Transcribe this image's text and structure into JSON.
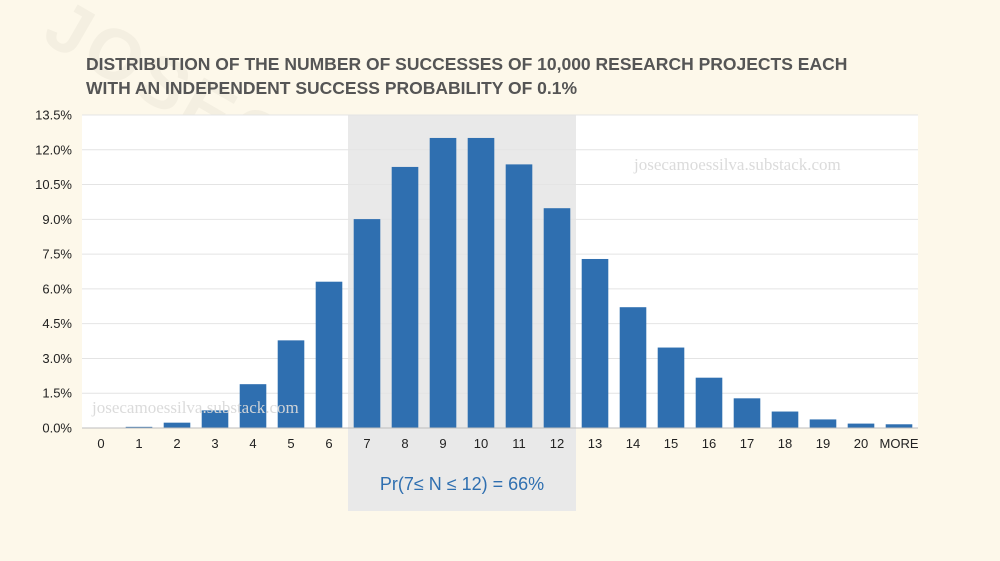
{
  "chart_data": {
    "type": "bar",
    "title": "DISTRIBUTION OF THE NUMBER OF SUCCESSES OF 10,000 RESEARCH PROJECTS EACH WITH AN INDEPENDENT SUCCESS PROBABILITY OF 0.1%",
    "title_lines": [
      "DISTRIBUTION OF THE NUMBER OF SUCCESSES OF 10,000 RESEARCH PROJECTS EACH",
      "WITH AN INDEPENDENT SUCCESS PROBABILITY OF 0.1%"
    ],
    "categories": [
      "0",
      "1",
      "2",
      "3",
      "4",
      "5",
      "6",
      "7",
      "8",
      "9",
      "10",
      "11",
      "12",
      "13",
      "14",
      "15",
      "16",
      "17",
      "18",
      "19",
      "20",
      "MORE"
    ],
    "values": [
      0.0,
      0.05,
      0.23,
      0.76,
      1.89,
      3.78,
      6.31,
      9.01,
      11.26,
      12.51,
      12.51,
      11.37,
      9.48,
      7.29,
      5.21,
      3.47,
      2.17,
      1.28,
      0.71,
      0.37,
      0.19,
      0.16
    ],
    "value_unit": "percent",
    "ylim": [
      0,
      13.5
    ],
    "y_ticks": [
      "0.0%",
      "1.5%",
      "3.0%",
      "4.5%",
      "6.0%",
      "7.5%",
      "9.0%",
      "10.5%",
      "12.0%",
      "13.5%"
    ],
    "y_tick_values": [
      0,
      1.5,
      3,
      4.5,
      6,
      7.5,
      9,
      10.5,
      12,
      13.5
    ],
    "xlabel": "",
    "ylabel": "",
    "grid": true,
    "highlight": {
      "from_category": "7",
      "to_category": "12",
      "label": "Pr(7≤ N ≤ 12) = 66%"
    },
    "colors": {
      "bar": "#2f6fb0",
      "highlight_band": "#e9e9e9",
      "annotation": "#2f6fb0",
      "background": "#fdf8ea",
      "plot_background": "#ffffff",
      "grid": "#e4e4e4",
      "title": "#555555"
    },
    "watermarks": {
      "large": "JOSECAMOESSILVA",
      "small": "josecamoessilva.substack.com"
    }
  }
}
